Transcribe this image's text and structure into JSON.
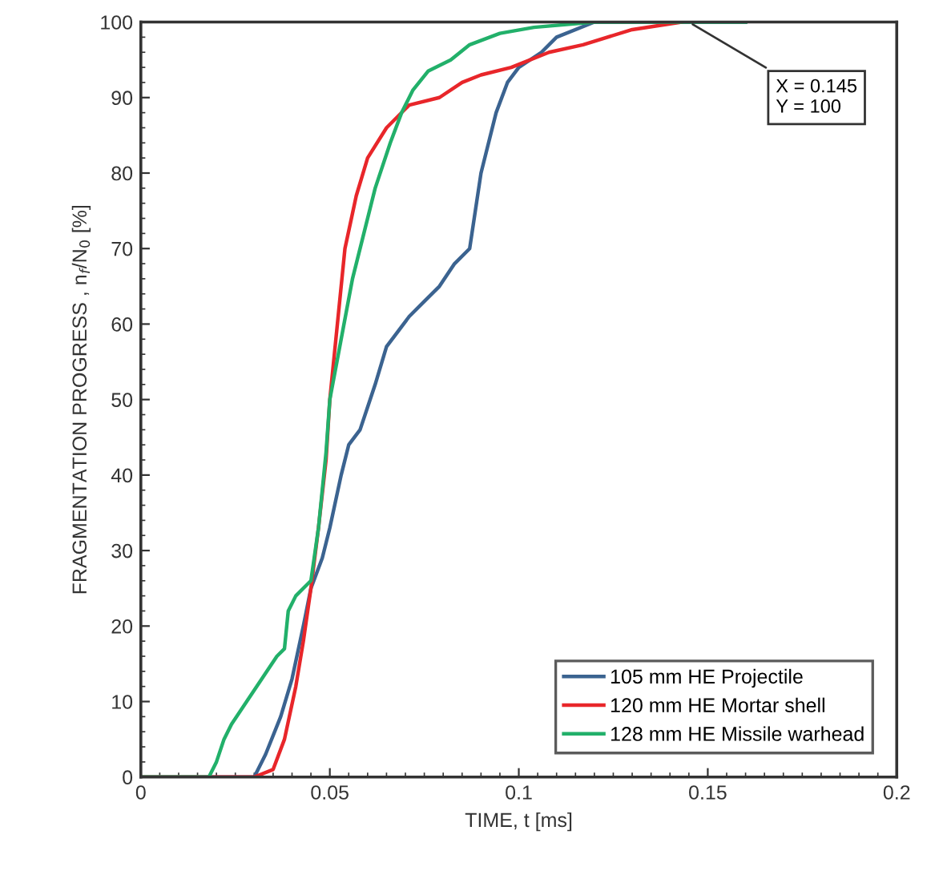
{
  "chart_data": {
    "type": "line",
    "xlabel": "TIME, t [ms]",
    "ylabel": "FRAGMENTATION PROGRESS , n$_{f}$/N$_{0}$ [%]",
    "xlim": [
      0,
      0.2
    ],
    "xticks": [
      0,
      0.05,
      0.1,
      0.15,
      0.2
    ],
    "ylim": [
      0,
      100
    ],
    "yticks": [
      0,
      10,
      20,
      30,
      40,
      50,
      60,
      70,
      80,
      90,
      100
    ],
    "grid": false,
    "legend": "bottom right",
    "line_style": "solid",
    "marker": "none",
    "annotations": [
      {
        "text": "X = 0.145\nY = 100",
        "x": 0.145,
        "y": 100
      }
    ],
    "series": [
      {
        "name": "105 mm HE Projectile",
        "color": "#3b6390",
        "x": [
          0,
          0.03,
          0.033,
          0.037,
          0.04,
          0.043,
          0.045,
          0.048,
          0.05,
          0.053,
          0.055,
          0.058,
          0.062,
          0.065,
          0.068,
          0.071,
          0.075,
          0.079,
          0.083,
          0.087,
          0.09,
          0.094,
          0.097,
          0.1,
          0.106,
          0.11,
          0.12,
          0.16
        ],
        "values": [
          0,
          0,
          3,
          8,
          13,
          20,
          25,
          29,
          33,
          40,
          44,
          46,
          52,
          57,
          59,
          61,
          63,
          65,
          68,
          70,
          80,
          88,
          92,
          94,
          96,
          98,
          100,
          100
        ]
      },
      {
        "name": "120 mm HE Mortar shell",
        "color": "#e8262a",
        "x": [
          0,
          0.03,
          0.035,
          0.038,
          0.041,
          0.043,
          0.045,
          0.047,
          0.049,
          0.05,
          0.052,
          0.054,
          0.057,
          0.06,
          0.065,
          0.071,
          0.079,
          0.085,
          0.09,
          0.098,
          0.108,
          0.117,
          0.13,
          0.143
        ],
        "values": [
          0,
          0,
          1,
          5,
          12,
          18,
          25,
          33,
          42,
          50,
          60,
          70,
          77,
          82,
          86,
          89,
          90,
          92,
          93,
          94,
          96,
          97,
          99,
          100
        ]
      },
      {
        "name": "128 mm HE Missile warhead",
        "color": "#22b06a",
        "x": [
          0,
          0.018,
          0.02,
          0.022,
          0.024,
          0.028,
          0.032,
          0.036,
          0.038,
          0.039,
          0.041,
          0.045,
          0.047,
          0.049,
          0.05,
          0.053,
          0.056,
          0.059,
          0.062,
          0.066,
          0.069,
          0.072,
          0.076,
          0.082,
          0.087,
          0.095,
          0.104,
          0.12,
          0.16
        ],
        "values": [
          0,
          0,
          2,
          5,
          7,
          10,
          13,
          16,
          17,
          22,
          24,
          26,
          33,
          43,
          50,
          58,
          66,
          72,
          78,
          84,
          88,
          91,
          93.5,
          95,
          97,
          98.5,
          99.3,
          100,
          100
        ]
      }
    ]
  }
}
